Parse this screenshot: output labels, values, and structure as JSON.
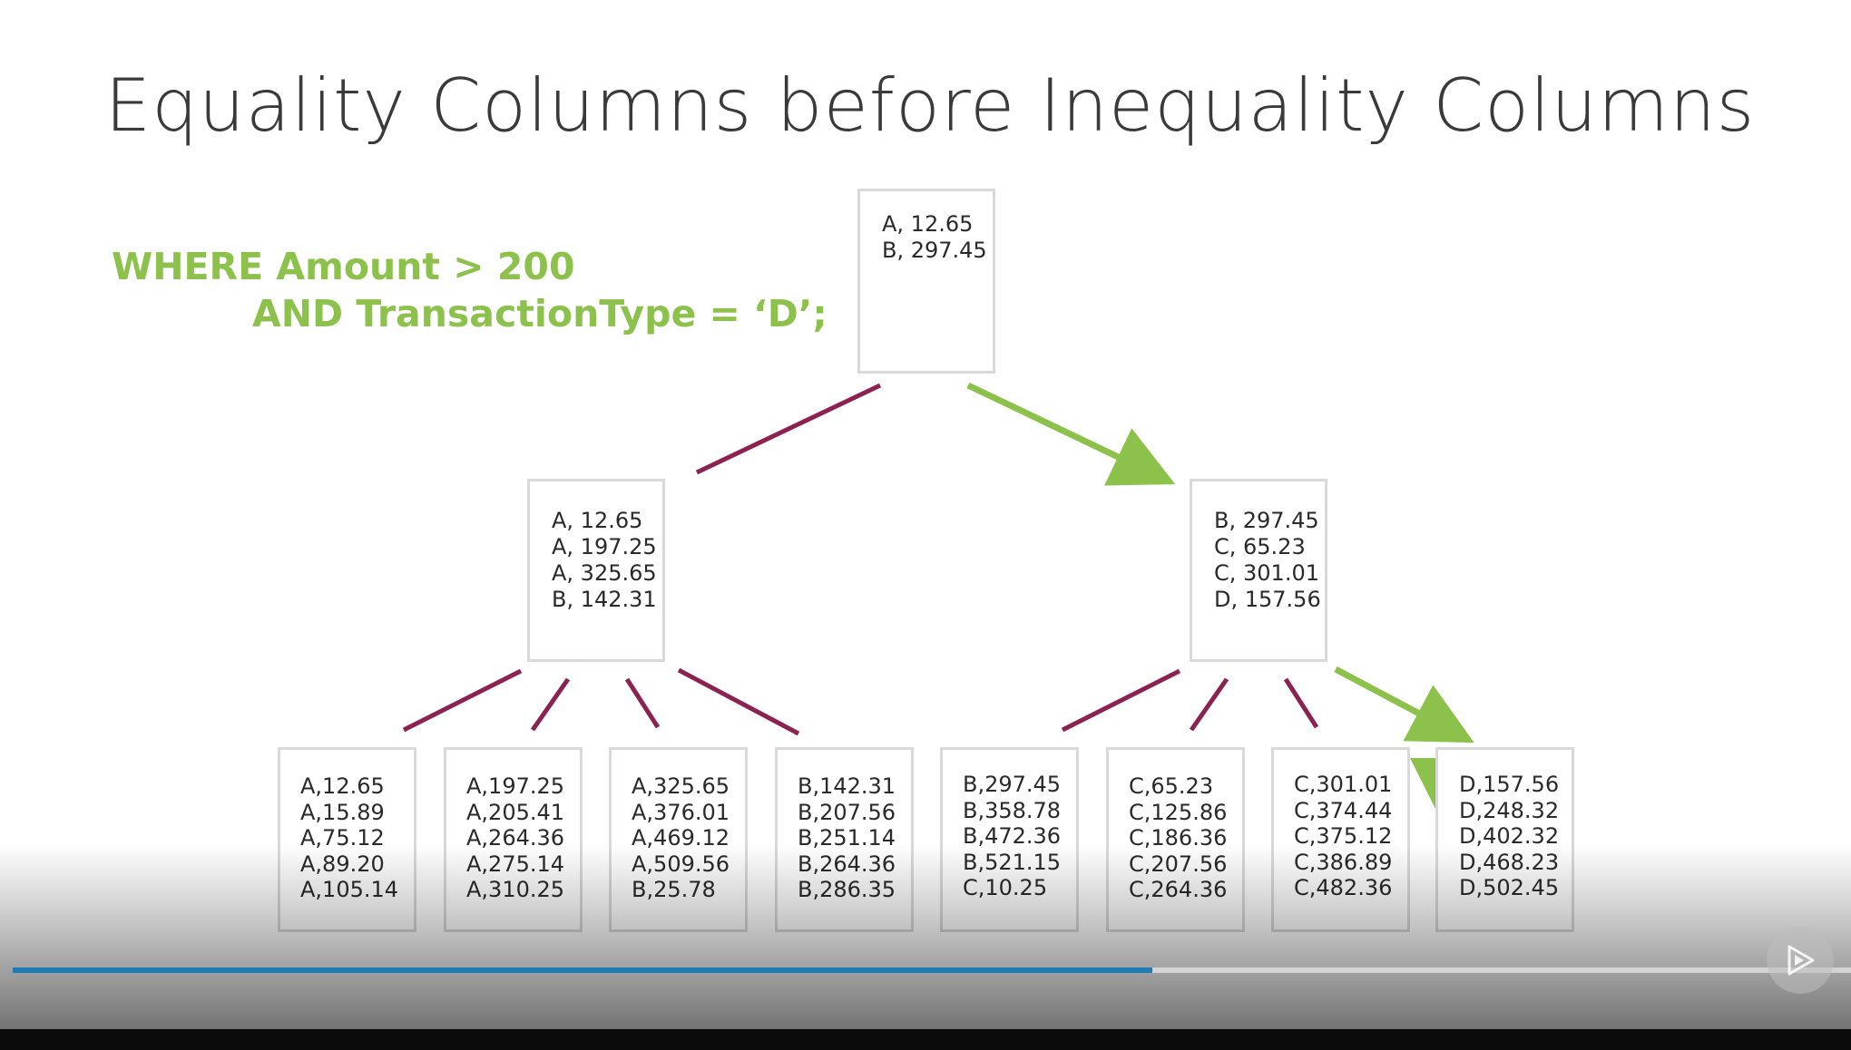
{
  "slide": {
    "title": "Equality Columns before Inequality Columns",
    "query_line1": "WHERE Amount > 200",
    "query_line2": "AND TransactionType = ‘D’;"
  },
  "tree": {
    "root": [
      "A, 12.65",
      "B, 297.45"
    ],
    "left": [
      "A, 12.65",
      "A, 197.25",
      "A, 325.65",
      "B, 142.31"
    ],
    "right": [
      "B, 297.45",
      "C, 65.23",
      "C, 301.01",
      "D, 157.56"
    ],
    "leaves": [
      [
        "A,12.65",
        "A,15.89",
        "A,75.12",
        "A,89.20",
        "A,105.14"
      ],
      [
        "A,197.25",
        "A,205.41",
        "A,264.36",
        "A,275.14",
        "A,310.25"
      ],
      [
        "A,325.65",
        "A,376.01",
        "A,469.12",
        "A,509.56",
        "B,25.78"
      ],
      [
        "B,142.31",
        "B,207.56",
        "B,251.14",
        "B,264.36",
        "B,286.35"
      ],
      [
        "B,297.45",
        "B,358.78",
        "B,472.36",
        "B,521.15",
        "C,10.25"
      ],
      [
        "C,65.23",
        "C,125.86",
        "C,186.36",
        "C,207.56",
        "C,264.36"
      ],
      [
        "C,301.01",
        "C,374.44",
        "C,375.12",
        "C,386.89",
        "C,482.36"
      ],
      [
        "D,157.56",
        "D,248.32",
        "D,402.32",
        "D,468.23",
        "D,502.45"
      ]
    ]
  },
  "player": {
    "progress": 0.62,
    "play_icon": "play-icon"
  },
  "colors": {
    "highlight_path": "#8cc24b",
    "edge": "#8b2252",
    "progress": "#1f7bb6"
  }
}
